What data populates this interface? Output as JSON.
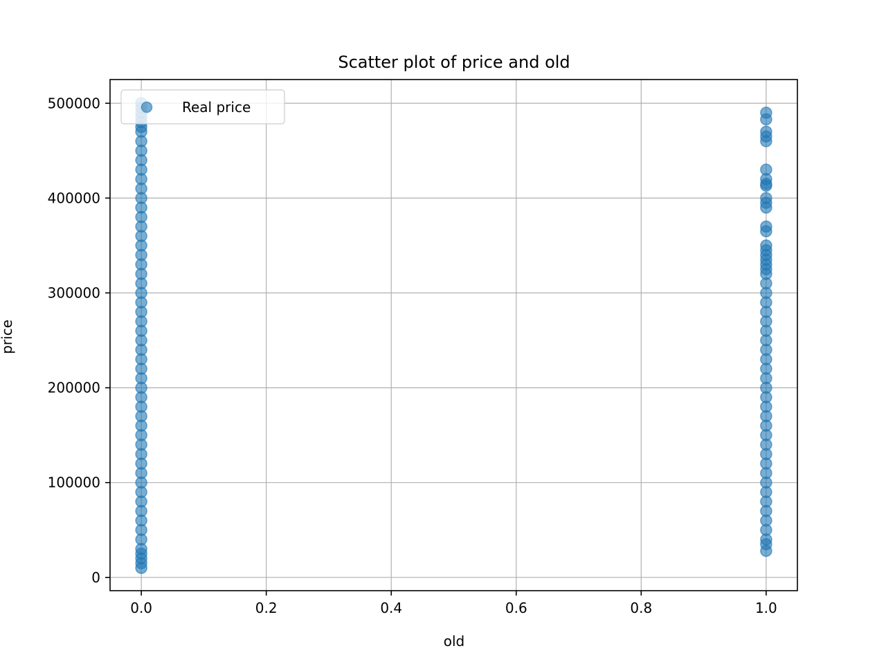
{
  "chart_data": {
    "type": "scatter",
    "title": "Scatter plot of price and old",
    "xlabel": "old",
    "ylabel": "price",
    "xlim": [
      -0.05,
      1.05
    ],
    "ylim": [
      -14000,
      525000
    ],
    "xticks": [
      0.0,
      0.2,
      0.4,
      0.6,
      0.8,
      1.0
    ],
    "xtick_labels": [
      "0.0",
      "0.2",
      "0.4",
      "0.6",
      "0.8",
      "1.0"
    ],
    "yticks": [
      0,
      100000,
      200000,
      300000,
      400000,
      500000
    ],
    "ytick_labels": [
      "0",
      "100000",
      "200000",
      "300000",
      "400000",
      "500000"
    ],
    "grid": true,
    "legend": {
      "placement": "upper-left"
    },
    "series": [
      {
        "name": "Real price",
        "color": "#1f77b4",
        "alpha": 0.6,
        "points": [
          {
            "x": 0,
            "y": 10000
          },
          {
            "x": 0,
            "y": 15000
          },
          {
            "x": 0,
            "y": 20000
          },
          {
            "x": 0,
            "y": 25000
          },
          {
            "x": 0,
            "y": 30000
          },
          {
            "x": 0,
            "y": 40000
          },
          {
            "x": 0,
            "y": 50000
          },
          {
            "x": 0,
            "y": 60000
          },
          {
            "x": 0,
            "y": 70000
          },
          {
            "x": 0,
            "y": 80000
          },
          {
            "x": 0,
            "y": 90000
          },
          {
            "x": 0,
            "y": 100000
          },
          {
            "x": 0,
            "y": 110000
          },
          {
            "x": 0,
            "y": 120000
          },
          {
            "x": 0,
            "y": 130000
          },
          {
            "x": 0,
            "y": 140000
          },
          {
            "x": 0,
            "y": 150000
          },
          {
            "x": 0,
            "y": 160000
          },
          {
            "x": 0,
            "y": 170000
          },
          {
            "x": 0,
            "y": 180000
          },
          {
            "x": 0,
            "y": 190000
          },
          {
            "x": 0,
            "y": 200000
          },
          {
            "x": 0,
            "y": 210000
          },
          {
            "x": 0,
            "y": 220000
          },
          {
            "x": 0,
            "y": 230000
          },
          {
            "x": 0,
            "y": 240000
          },
          {
            "x": 0,
            "y": 250000
          },
          {
            "x": 0,
            "y": 260000
          },
          {
            "x": 0,
            "y": 270000
          },
          {
            "x": 0,
            "y": 280000
          },
          {
            "x": 0,
            "y": 290000
          },
          {
            "x": 0,
            "y": 300000
          },
          {
            "x": 0,
            "y": 310000
          },
          {
            "x": 0,
            "y": 320000
          },
          {
            "x": 0,
            "y": 330000
          },
          {
            "x": 0,
            "y": 340000
          },
          {
            "x": 0,
            "y": 350000
          },
          {
            "x": 0,
            "y": 360000
          },
          {
            "x": 0,
            "y": 370000
          },
          {
            "x": 0,
            "y": 380000
          },
          {
            "x": 0,
            "y": 390000
          },
          {
            "x": 0,
            "y": 400000
          },
          {
            "x": 0,
            "y": 410000
          },
          {
            "x": 0,
            "y": 420000
          },
          {
            "x": 0,
            "y": 430000
          },
          {
            "x": 0,
            "y": 440000
          },
          {
            "x": 0,
            "y": 450000
          },
          {
            "x": 0,
            "y": 460000
          },
          {
            "x": 0,
            "y": 470000
          },
          {
            "x": 0,
            "y": 475000
          },
          {
            "x": 0,
            "y": 480000
          },
          {
            "x": 0,
            "y": 485000
          },
          {
            "x": 0,
            "y": 490000
          },
          {
            "x": 0,
            "y": 495000
          },
          {
            "x": 0,
            "y": 500000
          },
          {
            "x": 1,
            "y": 28000
          },
          {
            "x": 1,
            "y": 35000
          },
          {
            "x": 1,
            "y": 40000
          },
          {
            "x": 1,
            "y": 50000
          },
          {
            "x": 1,
            "y": 60000
          },
          {
            "x": 1,
            "y": 70000
          },
          {
            "x": 1,
            "y": 80000
          },
          {
            "x": 1,
            "y": 90000
          },
          {
            "x": 1,
            "y": 100000
          },
          {
            "x": 1,
            "y": 110000
          },
          {
            "x": 1,
            "y": 120000
          },
          {
            "x": 1,
            "y": 130000
          },
          {
            "x": 1,
            "y": 140000
          },
          {
            "x": 1,
            "y": 150000
          },
          {
            "x": 1,
            "y": 160000
          },
          {
            "x": 1,
            "y": 170000
          },
          {
            "x": 1,
            "y": 180000
          },
          {
            "x": 1,
            "y": 190000
          },
          {
            "x": 1,
            "y": 200000
          },
          {
            "x": 1,
            "y": 210000
          },
          {
            "x": 1,
            "y": 220000
          },
          {
            "x": 1,
            "y": 230000
          },
          {
            "x": 1,
            "y": 240000
          },
          {
            "x": 1,
            "y": 250000
          },
          {
            "x": 1,
            "y": 260000
          },
          {
            "x": 1,
            "y": 270000
          },
          {
            "x": 1,
            "y": 280000
          },
          {
            "x": 1,
            "y": 290000
          },
          {
            "x": 1,
            "y": 300000
          },
          {
            "x": 1,
            "y": 310000
          },
          {
            "x": 1,
            "y": 320000
          },
          {
            "x": 1,
            "y": 325000
          },
          {
            "x": 1,
            "y": 330000
          },
          {
            "x": 1,
            "y": 335000
          },
          {
            "x": 1,
            "y": 340000
          },
          {
            "x": 1,
            "y": 345000
          },
          {
            "x": 1,
            "y": 350000
          },
          {
            "x": 1,
            "y": 365000
          },
          {
            "x": 1,
            "y": 370000
          },
          {
            "x": 1,
            "y": 390000
          },
          {
            "x": 1,
            "y": 395000
          },
          {
            "x": 1,
            "y": 400000
          },
          {
            "x": 1,
            "y": 413000
          },
          {
            "x": 1,
            "y": 415000
          },
          {
            "x": 1,
            "y": 420000
          },
          {
            "x": 1,
            "y": 430000
          },
          {
            "x": 1,
            "y": 460000
          },
          {
            "x": 1,
            "y": 465000
          },
          {
            "x": 1,
            "y": 470000
          },
          {
            "x": 1,
            "y": 483000
          },
          {
            "x": 1,
            "y": 490000
          }
        ]
      }
    ]
  }
}
